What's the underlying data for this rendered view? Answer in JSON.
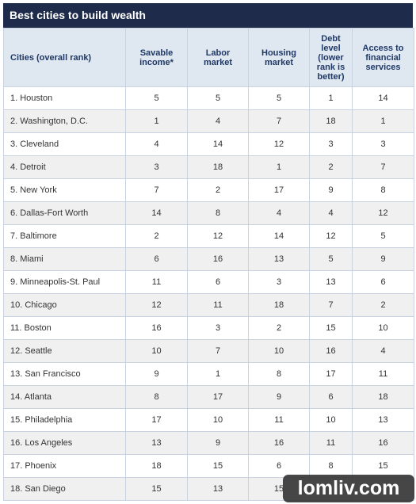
{
  "header": {
    "title": "Best cities to build wealth"
  },
  "table": {
    "columns": [
      "Cities (overall rank)",
      "Savable income*",
      "Labor market",
      "Housing market",
      "Debt level (lower rank is better)",
      "Access to financial services"
    ],
    "rows": [
      [
        "1. Houston",
        5,
        5,
        5,
        1,
        14
      ],
      [
        "2. Washington, D.C.",
        1,
        4,
        7,
        18,
        1
      ],
      [
        "3. Cleveland",
        4,
        14,
        12,
        3,
        3
      ],
      [
        "4. Detroit",
        3,
        18,
        1,
        2,
        7
      ],
      [
        "5. New York",
        7,
        2,
        17,
        9,
        8
      ],
      [
        "6. Dallas-Fort Worth",
        14,
        8,
        4,
        4,
        12
      ],
      [
        "7. Baltimore",
        2,
        12,
        14,
        12,
        5
      ],
      [
        "8. Miami",
        6,
        16,
        13,
        5,
        9
      ],
      [
        "9. Minneapolis-St. Paul",
        11,
        6,
        3,
        13,
        6
      ],
      [
        "10. Chicago",
        12,
        11,
        18,
        7,
        2
      ],
      [
        "11. Boston",
        16,
        3,
        2,
        15,
        10
      ],
      [
        "12. Seattle",
        10,
        7,
        10,
        16,
        4
      ],
      [
        "13. San Francisco",
        9,
        1,
        8,
        17,
        11
      ],
      [
        "14. Atlanta",
        8,
        17,
        9,
        6,
        18
      ],
      [
        "15. Philadelphia",
        17,
        10,
        11,
        10,
        13
      ],
      [
        "16. Los Angeles",
        13,
        9,
        16,
        11,
        16
      ],
      [
        "17. Phoenix",
        18,
        15,
        6,
        8,
        15
      ],
      [
        "18. San Diego",
        15,
        13,
        15,
        null,
        null
      ]
    ]
  },
  "watermark": "lomliv.com"
}
